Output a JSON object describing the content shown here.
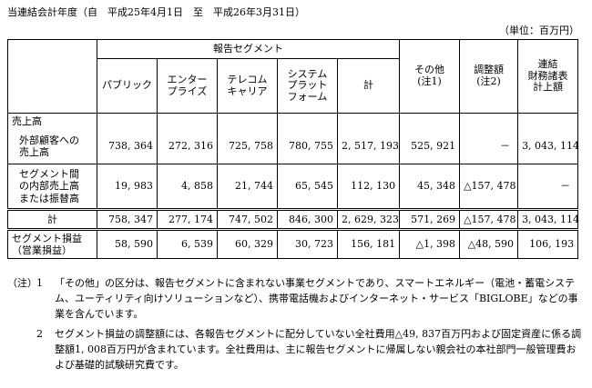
{
  "period": "当連結会計年度（自　平成25年4月1日　至　平成26年3月31日）",
  "unit": "（単位：百万円）",
  "headers": {
    "group": "報告セグメント",
    "public": "パブリック",
    "enterprise": "エンター\nプライズ",
    "telecom": "テレコム\nキャリア",
    "system": "システム\nプラット\nフォーム",
    "subtotal": "計",
    "other": "その他\n(注1)",
    "adjust": "調整額\n(注2)",
    "consolidated": "連結\n財務諸表\n計上額"
  },
  "rows": {
    "sales_heading": "売上高",
    "external_label": "外部顧客への\n売上高",
    "external": [
      "738, 364",
      "272, 316",
      "725, 758",
      "780, 755",
      "2, 517, 193",
      "525, 921",
      "－",
      "3, 043, 114"
    ],
    "intersegment_label": "セグメント間\nの内部売上高\nまたは振替高",
    "intersegment": [
      "19, 983",
      "4, 858",
      "21, 744",
      "65, 545",
      "112, 130",
      "45, 348",
      "△157, 478",
      "－"
    ],
    "total_label": "計",
    "total": [
      "758, 347",
      "277, 174",
      "747, 502",
      "846, 300",
      "2, 629, 323",
      "571, 269",
      "△157, 478",
      "3, 043, 114"
    ],
    "profit_label": "セグメント損益\n（営業損益）",
    "profit": [
      "58, 590",
      "6, 539",
      "60, 329",
      "30, 723",
      "156, 181",
      "△1, 398",
      "△48, 590",
      "106, 193"
    ]
  },
  "notes": {
    "mark": "（注）",
    "n1_num": "1",
    "n1": "「その他」の区分は、報告セグメントに含まれない事業セグメントであり、スマートエネルギー（電池・蓄電システム、ユーティリティ向けソリューションなど）、携帯電話機およびインターネット・サービス「BIGLOBE」などの事業を含んでいます。",
    "n2_num": "2",
    "n2": "セグメント損益の調整額には、各報告セグメントに配分していない全社費用△49, 837百万円および固定資産に係る調整額1, 008百万円が含まれています。全社費用は、主に報告セグメントに帰属しない親会社の本社部門一般管理費および基礎的試験研究費です。"
  }
}
